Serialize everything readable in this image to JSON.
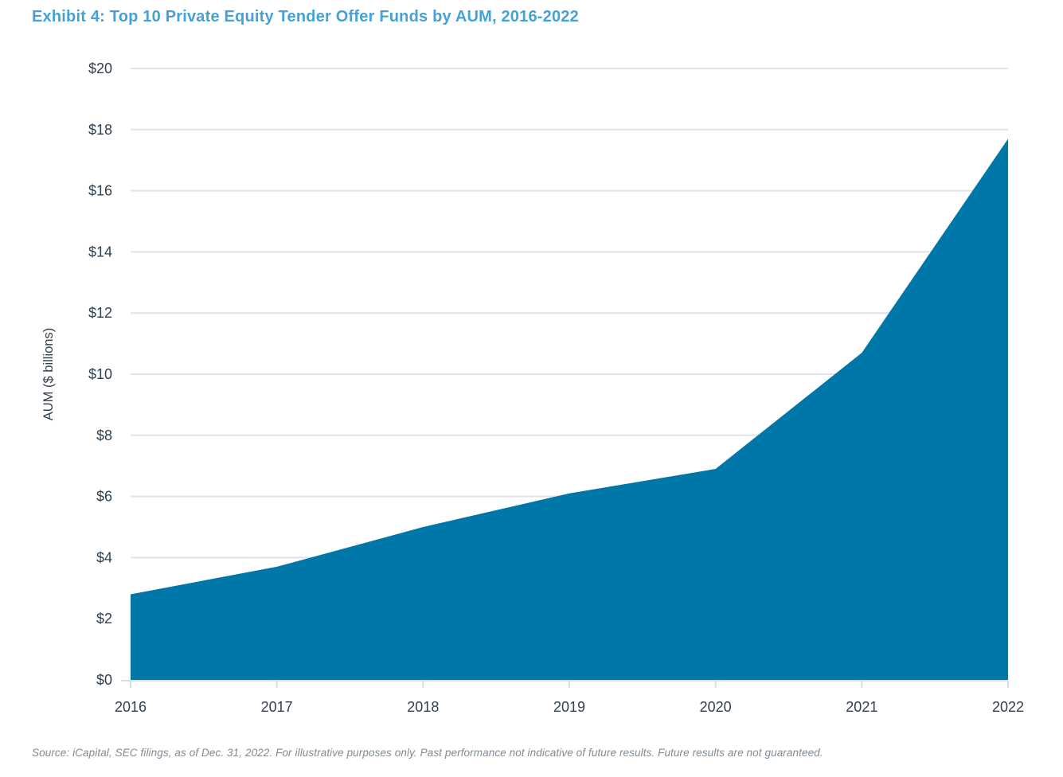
{
  "title": "Exhibit 4: Top 10 Private Equity Tender Offer Funds by AUM, 2016-2022",
  "source_note": "Source: iCapital, SEC filings, as of Dec. 31, 2022. For illustrative purposes only. Past performance not indicative of future results. Future results are not guaranteed.",
  "colors": {
    "title": "#45A1D6",
    "area_fill": "#0077A9",
    "gridline": "#E0E3EE",
    "axis_line": "#D9DDE5",
    "tick_text": "#30404D",
    "source_text": "#7F8B94"
  },
  "chart_data": {
    "type": "area",
    "title": "Exhibit 4: Top 10 Private Equity Tender Offer Funds by AUM, 2016-2022",
    "categories": [
      "2016",
      "2017",
      "2018",
      "2019",
      "2020",
      "2021",
      "2022"
    ],
    "values": [
      2.8,
      3.7,
      5.0,
      6.1,
      6.9,
      10.7,
      17.7
    ],
    "xlabel": "",
    "ylabel": "AUM ($ billions)",
    "ylim": [
      0,
      20
    ],
    "ytick_step": 2,
    "ytick_labels": [
      "$0",
      "$2",
      "$4",
      "$6",
      "$8",
      "$10",
      "$12",
      "$14",
      "$16",
      "$18",
      "$20"
    ],
    "grid": "horizontal",
    "legend": "none"
  }
}
